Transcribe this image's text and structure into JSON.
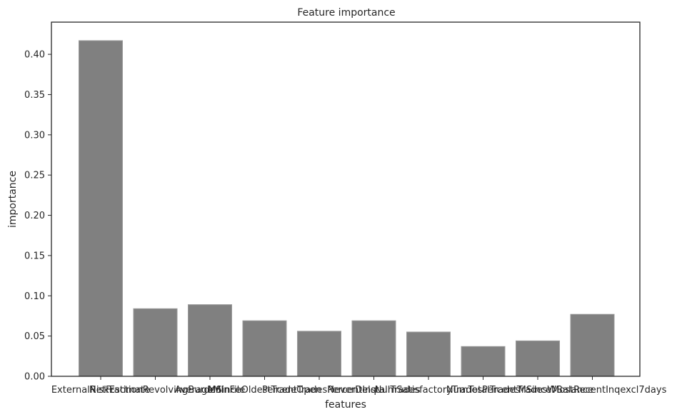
{
  "chart_data": {
    "type": "bar",
    "title": "Feature importance",
    "xlabel": "features",
    "ylabel": "importance",
    "ylim": [
      0,
      0.44
    ],
    "yticks": [
      "0.00",
      "0.05",
      "0.10",
      "0.15",
      "0.20",
      "0.25",
      "0.30",
      "0.35",
      "0.40"
    ],
    "categories": [
      "ExternalRiskEstimate",
      "NetFractionRevolvingBurden",
      "AverageMInFile",
      "MSinceOldestTradeOpen",
      "PercentTradesNeverDelq",
      "PercentInstallTrades",
      "NumSatisfactoryTrades",
      "NumTotalTrades",
      "PercentTradesWBalance",
      "MSinceMostRecentInqexcl7days"
    ],
    "values": [
      0.417,
      0.084,
      0.089,
      0.069,
      0.056,
      0.069,
      0.055,
      0.037,
      0.044,
      0.077
    ],
    "grid": false,
    "colors": {
      "bar_fill": "#808080",
      "bar_edge": "#9a9a9a",
      "axes": "#262626"
    }
  }
}
